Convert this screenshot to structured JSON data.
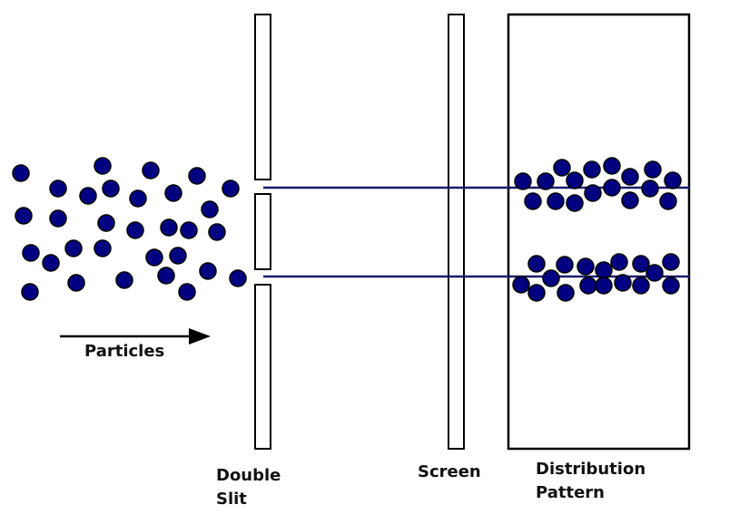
{
  "labels": {
    "particles": "Particles",
    "double_slit_line1": "Double",
    "double_slit_line2": "Slit",
    "screen": "Screen",
    "distribution_line1": "Distribution",
    "distribution_line2": "Pattern"
  },
  "colors": {
    "particle": "#000080",
    "beam": "#1a1a6e",
    "outline": "#000000"
  }
}
